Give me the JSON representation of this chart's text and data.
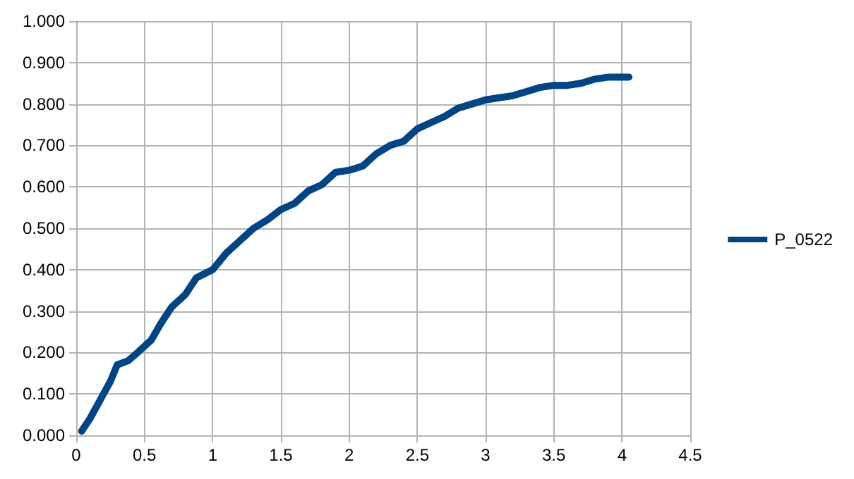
{
  "chart_data": {
    "type": "line",
    "x": [
      0.04,
      0.1,
      0.15,
      0.2,
      0.25,
      0.3,
      0.38,
      0.45,
      0.55,
      0.62,
      0.7,
      0.8,
      0.88,
      1.0,
      1.1,
      1.2,
      1.3,
      1.4,
      1.5,
      1.6,
      1.7,
      1.8,
      1.9,
      2.0,
      2.1,
      2.2,
      2.3,
      2.4,
      2.5,
      2.6,
      2.7,
      2.8,
      2.9,
      3.0,
      3.1,
      3.2,
      3.3,
      3.4,
      3.5,
      3.6,
      3.7,
      3.8,
      3.9,
      4.05
    ],
    "series": [
      {
        "name": "P_0522",
        "color": "#004586",
        "values": [
          0.01,
          0.04,
          0.07,
          0.1,
          0.13,
          0.17,
          0.18,
          0.2,
          0.23,
          0.27,
          0.31,
          0.34,
          0.38,
          0.4,
          0.44,
          0.47,
          0.5,
          0.52,
          0.545,
          0.56,
          0.59,
          0.605,
          0.635,
          0.64,
          0.65,
          0.68,
          0.7,
          0.71,
          0.74,
          0.755,
          0.77,
          0.79,
          0.8,
          0.81,
          0.815,
          0.82,
          0.83,
          0.84,
          0.845,
          0.845,
          0.85,
          0.86,
          0.865,
          0.865
        ]
      }
    ],
    "xlim": [
      0,
      4.5
    ],
    "xticks": [
      0,
      0.5,
      1,
      1.5,
      2,
      2.5,
      3,
      3.5,
      4,
      4.5
    ],
    "ylim": [
      0,
      1
    ],
    "yticks": [
      {
        "value": 0,
        "label": "0.000"
      },
      {
        "value": 0.1,
        "label": "0.100"
      },
      {
        "value": 0.2,
        "label": "0.200"
      },
      {
        "value": 0.3,
        "label": "0.300"
      },
      {
        "value": 0.4,
        "label": "0.400"
      },
      {
        "value": 0.5,
        "label": "0.500"
      },
      {
        "value": 0.6,
        "label": "0.600"
      },
      {
        "value": 0.7,
        "label": "0.700"
      },
      {
        "value": 0.8,
        "label": "0.800"
      },
      {
        "value": 0.9,
        "label": "0.900"
      },
      {
        "value": 1,
        "label": "1.000"
      }
    ],
    "grid": true,
    "legend": "right",
    "marker": "none",
    "line_style": "solid"
  }
}
